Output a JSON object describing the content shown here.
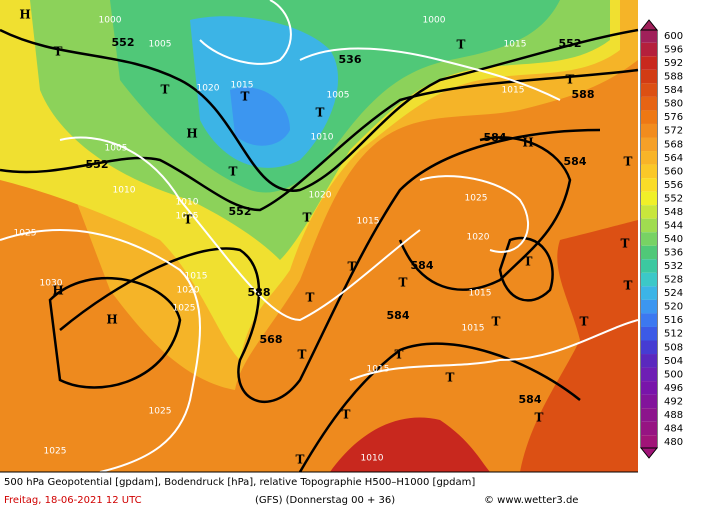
{
  "map": {
    "labels": [
      "552",
      "536",
      "552",
      "588",
      "552",
      "584",
      "584",
      "552",
      "584",
      "588",
      "584",
      "568",
      "584",
      "1000",
      "1005",
      "1020",
      "1015",
      "1005",
      "1010",
      "1005",
      "1010",
      "1010",
      "1005",
      "1025",
      "1015",
      "1020",
      "1025",
      "1030",
      "1025",
      "1020",
      "1015",
      "1015",
      "1015",
      "1025",
      "1025",
      "1010",
      "1015",
      "1015",
      "1000",
      "1020",
      "1015"
    ],
    "symbols": [
      "H",
      "T",
      "T",
      "H",
      "T",
      "T",
      "T",
      "T",
      "T",
      "T",
      "H",
      "H",
      "T",
      "T",
      "T",
      "T",
      "T",
      "H",
      "T",
      "T",
      "T",
      "T",
      "T",
      "T",
      "T",
      "T",
      "T",
      "T",
      "T"
    ]
  },
  "colorbar": {
    "ticks": [
      600,
      596,
      592,
      588,
      584,
      580,
      576,
      572,
      568,
      564,
      560,
      556,
      552,
      548,
      544,
      540,
      536,
      532,
      528,
      524,
      520,
      516,
      512,
      508,
      504,
      500,
      496,
      492,
      488,
      484,
      480
    ],
    "colors": [
      "#a0205a",
      "#b4203c",
      "#c8281e",
      "#d23c14",
      "#dc5014",
      "#e66414",
      "#ee7814",
      "#f28c1e",
      "#f5a028",
      "#f8b428",
      "#fac828",
      "#fadc28",
      "#f0f028",
      "#c8e63c",
      "#a0dc50",
      "#78d264",
      "#50c878",
      "#3cc8a0",
      "#3cc8c8",
      "#3cb4e6",
      "#3c96f0",
      "#3c78f0",
      "#3c5ae6",
      "#463cd2",
      "#5a28be",
      "#6e1eb4",
      "#7814aa",
      "#82149b",
      "#8c148c",
      "#961482",
      "#a01478"
    ]
  },
  "footer": {
    "description": "500 hPa Geopotential [gpdam], Bodendruck [hPa], relative Topographie H500–H1000 [gpdam]",
    "date": "Freitag, 18-06-2021  12 UTC",
    "model": "(GFS)  (Donnerstag 00 + 36)",
    "copyright": "© www.wetter3.de"
  }
}
